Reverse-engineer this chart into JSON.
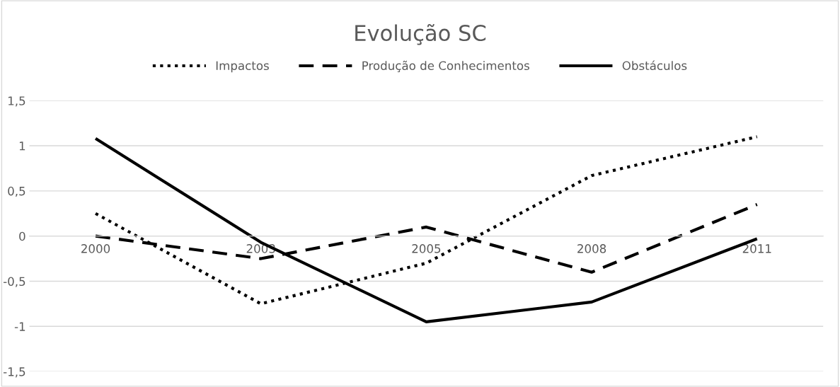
{
  "chart_data": {
    "type": "line",
    "title": "Evolução SC",
    "categories": [
      "2000",
      "2003",
      "2005",
      "2008",
      "2011"
    ],
    "series": [
      {
        "name": "Impactos",
        "color": "#000000",
        "line_style": "dotted",
        "values": [
          0.25,
          -0.75,
          -0.3,
          0.67,
          1.1
        ]
      },
      {
        "name": "Produção de Conhecimentos",
        "color": "#000000",
        "line_style": "dashed",
        "values": [
          0,
          -0.25,
          0.1,
          -0.4,
          0.35
        ]
      },
      {
        "name": "Obstáculos",
        "color": "#000000",
        "line_style": "solid",
        "values": [
          1.08,
          -0.07,
          -0.95,
          -0.73,
          -0.03
        ]
      }
    ],
    "ylim": [
      -1.5,
      1.5
    ],
    "yticks": [
      {
        "value": -1.5,
        "label": "-1,5"
      },
      {
        "value": -1,
        "label": "-1"
      },
      {
        "value": -0.5,
        "label": "-0,5"
      },
      {
        "value": 0,
        "label": "0"
      },
      {
        "value": 0.5,
        "label": "0,5"
      },
      {
        "value": 1,
        "label": "1"
      },
      {
        "value": 1.5,
        "label": "1,5"
      }
    ],
    "grid": "y",
    "legend": "top",
    "marker": "none"
  }
}
